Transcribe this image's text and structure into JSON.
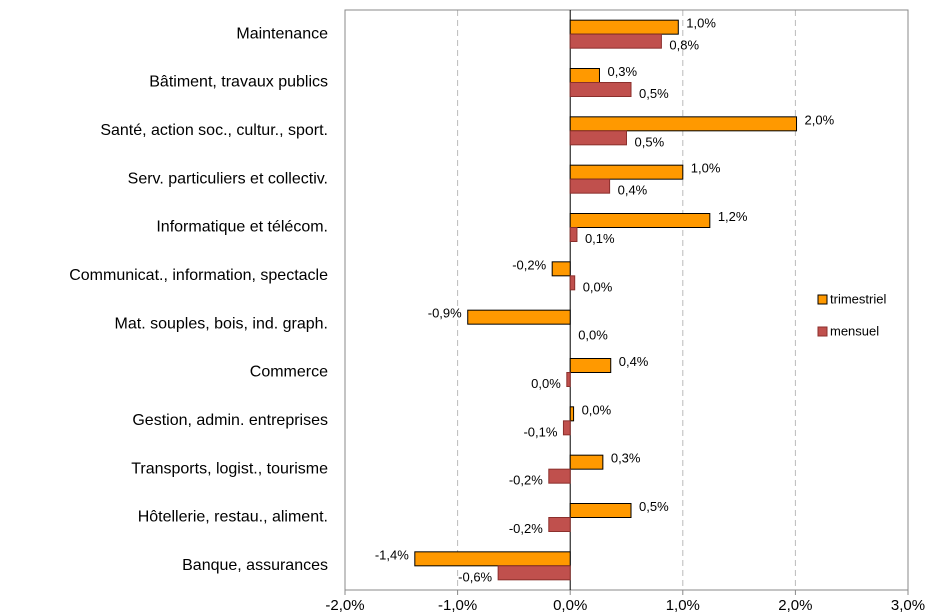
{
  "chart_data": {
    "type": "hbar",
    "categories": [
      "Maintenance",
      "Bâtiment, travaux publics",
      "Santé, action soc., cultur., sport.",
      "Serv. particuliers et collectiv.",
      "Informatique et télécom.",
      "Communicat., information, spectacle",
      "Mat. souples, bois, ind. graph.",
      "Commerce",
      "Gestion, admin. entreprises",
      "Transports, logist., tourisme",
      "Hôtellerie, restau., aliment.",
      "Banque, assurances"
    ],
    "series": [
      {
        "name": "trimestriel",
        "color": "#ff9900",
        "values": [
          0.96,
          0.26,
          2.01,
          1.0,
          1.24,
          -0.16,
          -0.91,
          0.36,
          0.03,
          0.29,
          0.54,
          -1.38
        ],
        "value_labels": [
          "1,0%",
          "0,3%",
          "2,0%",
          "1,0%",
          "1,2%",
          "-0,2%",
          "-0,9%",
          "0,4%",
          "0,0%",
          "0,3%",
          "0,5%",
          "-1,4%"
        ]
      },
      {
        "name": "mensuel",
        "color": "#c0504d",
        "values": [
          0.81,
          0.54,
          0.5,
          0.35,
          0.06,
          0.04,
          0,
          -0.03,
          -0.06,
          -0.19,
          -0.19,
          -0.64
        ],
        "value_labels": [
          "0,8%",
          "0,5%",
          "0,5%",
          "0,4%",
          "0,1%",
          "0,0%",
          "0,0%",
          "0,0%",
          "-0,1%",
          "-0,2%",
          "-0,2%",
          "-0,6%"
        ]
      }
    ],
    "xlim": [
      -2,
      3
    ],
    "xticks": [
      {
        "value": -2,
        "label": "-2,0%"
      },
      {
        "value": -1,
        "label": "-1,0%"
      },
      {
        "value": 0,
        "label": "0,0%"
      },
      {
        "value": 1,
        "label": "1,0%"
      },
      {
        "value": 2,
        "label": "2,0%"
      },
      {
        "value": 3,
        "label": "3,0%"
      }
    ],
    "grid": true,
    "legend": "right"
  }
}
